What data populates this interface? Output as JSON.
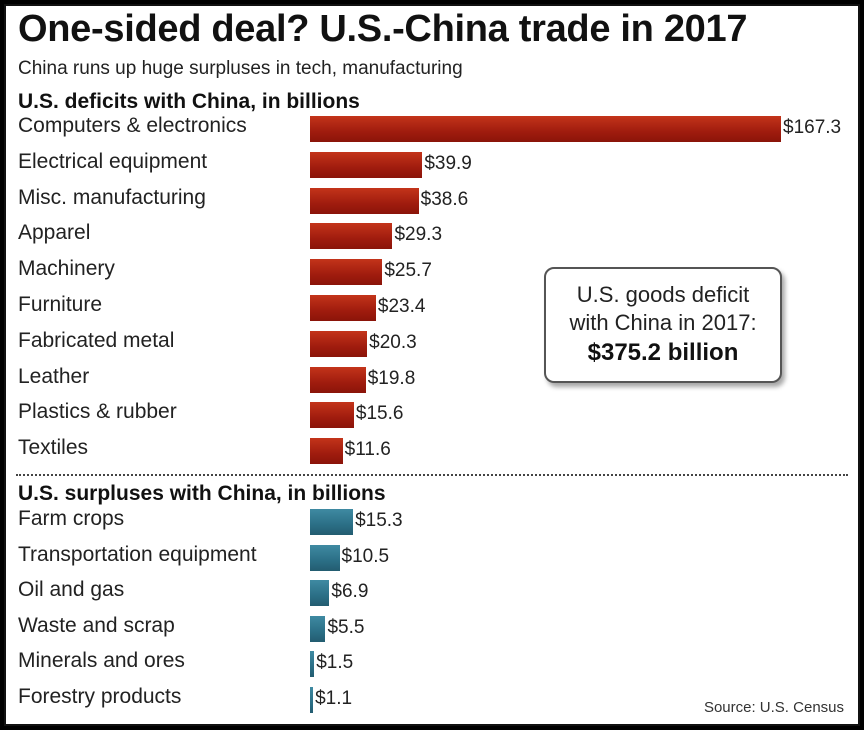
{
  "title": "One-sided deal? U.S.-China trade in 2017",
  "subtitle": "China runs up huge surpluses in tech, manufacturing",
  "deficit_heading": "U.S. deficits with China, in billions",
  "surplus_heading": "U.S. surpluses with China, in billions",
  "callout": {
    "line1": "U.S. goods deficit",
    "line2": "with China in 2017:",
    "total": "$375.2 billion"
  },
  "source": "Source: U.S. Census",
  "colors": {
    "deficit": "#a01c0e",
    "surplus": "#2b6f86"
  },
  "chart_data": {
    "type": "bar",
    "orientation": "horizontal",
    "series": [
      {
        "name": "U.S. deficits with China, in billions",
        "categories": [
          "Computers & electronics",
          "Electrical equipment",
          "Misc. manufacturing",
          "Apparel",
          "Machinery",
          "Furniture",
          "Fabricated metal",
          "Leather",
          "Plastics & rubber",
          "Textiles"
        ],
        "values": [
          167.3,
          39.9,
          38.6,
          29.3,
          25.7,
          23.4,
          20.3,
          19.8,
          15.6,
          11.6
        ],
        "labels": [
          "$167.3",
          "$39.9",
          "$38.6",
          "$29.3",
          "$25.7",
          "$23.4",
          "$20.3",
          "$19.8",
          "$15.6",
          "$11.6"
        ]
      },
      {
        "name": "U.S. surpluses with China, in billions",
        "categories": [
          "Farm crops",
          "Transportation equipment",
          "Oil and gas",
          "Waste and scrap",
          "Minerals and ores",
          "Forestry products"
        ],
        "values": [
          15.3,
          10.5,
          6.9,
          5.5,
          1.5,
          1.1
        ],
        "labels": [
          "$15.3",
          "$10.5",
          "$6.9",
          "$5.5",
          "$1.5",
          "$1.1"
        ]
      }
    ],
    "xlim": [
      0,
      167.3
    ],
    "grid": false,
    "legend": "none"
  }
}
